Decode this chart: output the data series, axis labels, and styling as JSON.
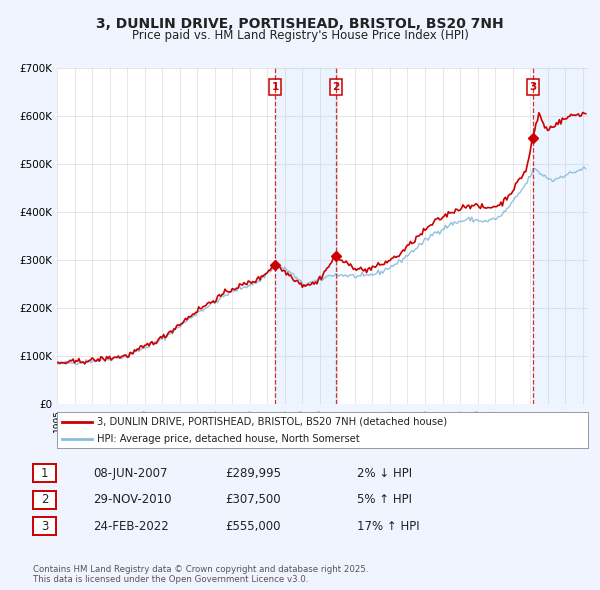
{
  "title": "3, DUNLIN DRIVE, PORTISHEAD, BRISTOL, BS20 7NH",
  "subtitle": "Price paid vs. HM Land Registry's House Price Index (HPI)",
  "bg_color": "#f0f4ff",
  "plot_bg_color": "#ffffff",
  "red_color": "#cc0000",
  "blue_color": "#88bbdd",
  "shade_color": "#ddeeff",
  "grid_color": "#cccccc",
  "ylim": [
    0,
    700000
  ],
  "yticks": [
    0,
    100000,
    200000,
    300000,
    400000,
    500000,
    600000,
    700000
  ],
  "ytick_labels": [
    "£0",
    "£100K",
    "£200K",
    "£300K",
    "£400K",
    "£500K",
    "£600K",
    "£700K"
  ],
  "xlim_start": 1995.0,
  "xlim_end": 2025.3,
  "sale_events": [
    {
      "label": "1",
      "date_num": 2007.44,
      "price": 289995,
      "direction": "↓",
      "pct": "2%",
      "date_str": "08-JUN-2007"
    },
    {
      "label": "2",
      "date_num": 2010.91,
      "price": 307500,
      "direction": "↑",
      "pct": "5%",
      "date_str": "29-NOV-2010"
    },
    {
      "label": "3",
      "date_num": 2022.15,
      "price": 555000,
      "direction": "↑",
      "pct": "17%",
      "date_str": "24-FEB-2022"
    }
  ],
  "legend_entries": [
    "3, DUNLIN DRIVE, PORTISHEAD, BRISTOL, BS20 7NH (detached house)",
    "HPI: Average price, detached house, North Somerset"
  ],
  "footer_text": "Contains HM Land Registry data © Crown copyright and database right 2025.\nThis data is licensed under the Open Government Licence v3.0.",
  "table_rows": [
    [
      "1",
      "08-JUN-2007",
      "£289,995",
      "2% ↓ HPI"
    ],
    [
      "2",
      "29-NOV-2010",
      "£307,500",
      "5% ↑ HPI"
    ],
    [
      "3",
      "24-FEB-2022",
      "£555,000",
      "17% ↑ HPI"
    ]
  ]
}
